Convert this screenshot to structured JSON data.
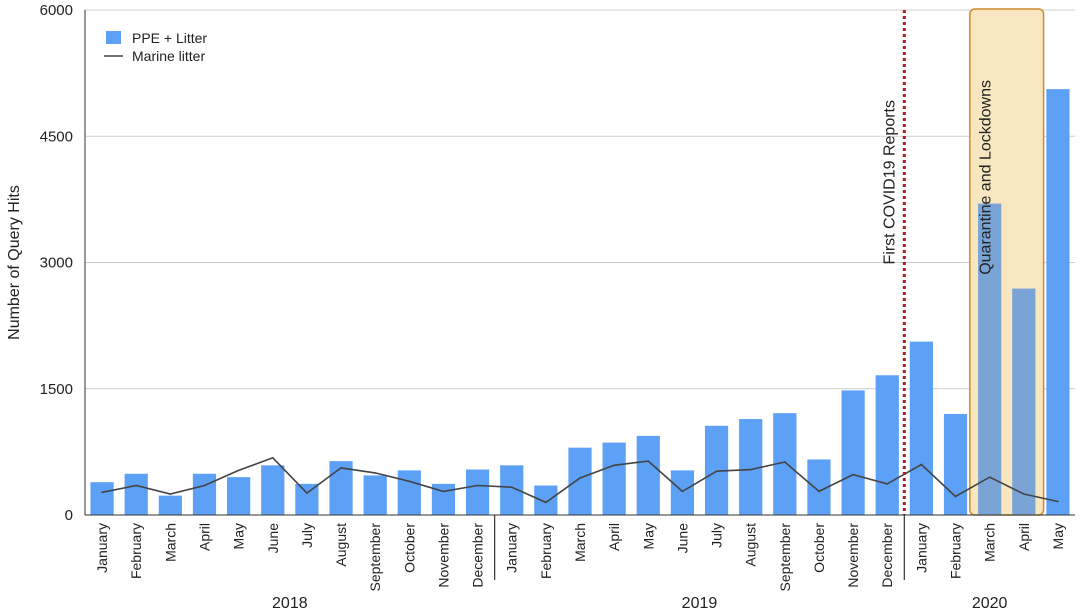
{
  "chart_data": {
    "type": "bar",
    "title": "",
    "xlabel": "",
    "ylabel": "Number of Query Hits",
    "ylim": [
      0,
      6000
    ],
    "yticks": [
      0,
      1500,
      3000,
      4500,
      6000
    ],
    "grid": true,
    "legend_position": "top-left",
    "categories": [
      "January",
      "February",
      "March",
      "April",
      "May",
      "June",
      "July",
      "August",
      "September",
      "October",
      "November",
      "December",
      "January",
      "February",
      "March",
      "April",
      "May",
      "June",
      "July",
      "August",
      "September",
      "October",
      "November",
      "December",
      "January",
      "February",
      "March",
      "April",
      "May"
    ],
    "year_groups": [
      {
        "label": "2018",
        "start": 0,
        "end": 11
      },
      {
        "label": "2019",
        "start": 12,
        "end": 23
      },
      {
        "label": "2020",
        "start": 24,
        "end": 28
      }
    ],
    "series": [
      {
        "name": "PPE + Litter",
        "kind": "bar",
        "color": "#5da1f7",
        "values": [
          390,
          490,
          230,
          490,
          450,
          590,
          370,
          640,
          470,
          530,
          370,
          540,
          590,
          350,
          800,
          860,
          940,
          530,
          1060,
          1140,
          1210,
          660,
          1480,
          1660,
          2060,
          1200,
          3700,
          2690,
          5060
        ]
      },
      {
        "name": "Marine litter",
        "kind": "line",
        "color": "#444444",
        "values": [
          270,
          350,
          250,
          350,
          530,
          680,
          260,
          560,
          500,
          400,
          280,
          350,
          330,
          150,
          440,
          590,
          640,
          280,
          520,
          540,
          630,
          280,
          480,
          370,
          600,
          220,
          450,
          250,
          160
        ]
      }
    ],
    "annotations": [
      {
        "text": "First COVID19 Reports",
        "type": "vline",
        "after_index": 23,
        "color": "#b01c1c"
      },
      {
        "text": "Quarantine and Lockdowns",
        "type": "box",
        "start": 26,
        "end": 27,
        "color": "#d08a2e",
        "fill": "#f7e6c0"
      }
    ]
  }
}
